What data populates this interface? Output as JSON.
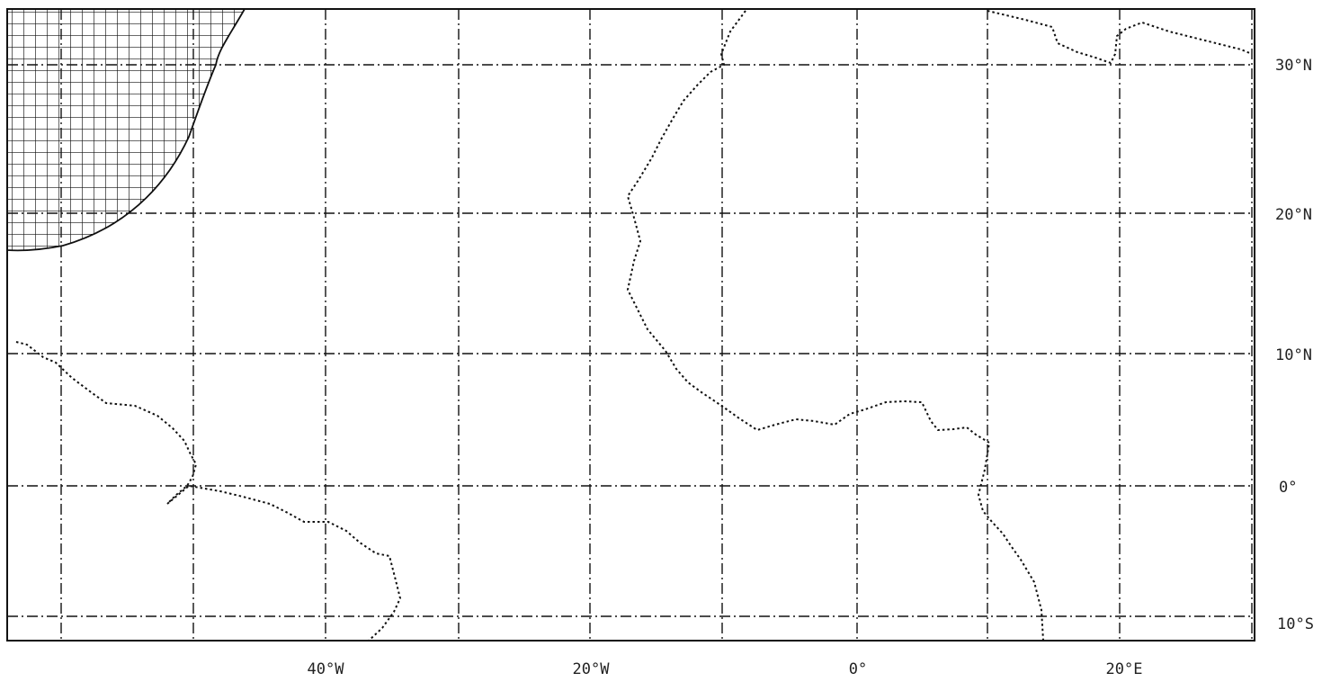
{
  "map": {
    "lat_labels": [
      "30°N",
      "20°N",
      "10°N",
      "0°",
      "10°S"
    ],
    "lon_labels": [
      "40°W",
      "20°W",
      "0°",
      "20°E"
    ]
  }
}
